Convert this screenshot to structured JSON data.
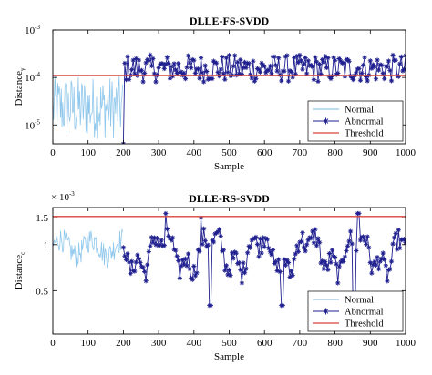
{
  "colors": {
    "normal": "#8fc7ec",
    "abnormal": "#1f1f8f",
    "threshold": "#d9453b"
  },
  "chart_data": [
    {
      "type": "line",
      "title": "DLLE-FS-SVDD",
      "xlabel": "Sample",
      "ylabel": "Distance",
      "ylabel_sub": "y",
      "yscale": "log",
      "xlim": [
        0,
        1000
      ],
      "ylim": [
        4e-06,
        0.001
      ],
      "xticks": [
        0,
        100,
        200,
        300,
        400,
        500,
        600,
        700,
        800,
        900,
        1000
      ],
      "xtick_labels": [
        "0",
        "100",
        "200",
        "300",
        "400",
        "500",
        "600",
        "700",
        "800",
        "900",
        "1000"
      ],
      "yticks": [
        1e-05,
        0.0001,
        0.001
      ],
      "ytick_labels": [
        {
          "base": "10",
          "exp": "-5"
        },
        {
          "base": "10",
          "exp": "-4"
        },
        {
          "base": "10",
          "exp": "-3"
        }
      ],
      "threshold": 0.00011,
      "legend_position": "bottom-right",
      "series": [
        {
          "name": "Normal",
          "style": "line",
          "range": [
            0,
            199
          ],
          "min": 5e-06,
          "max": 0.00011
        },
        {
          "name": "Abnormal",
          "style": "line-star",
          "range": [
            200,
            1000
          ],
          "min": 8e-05,
          "max": 0.0003,
          "dips": [
            [
              200,
              4e-06
            ]
          ]
        },
        {
          "name": "Threshold",
          "style": "flat",
          "value": 0.00011
        }
      ]
    },
    {
      "type": "line",
      "title": "DLLE-RS-SVDD",
      "xlabel": "Sample",
      "ylabel": "Distance",
      "ylabel_sub": "c",
      "yscale": "log",
      "scale_note": {
        "base": "× 10",
        "exp": "-3"
      },
      "xlim": [
        0,
        1000
      ],
      "ylim": [
        0.00026,
        0.00175
      ],
      "xticks": [
        0,
        100,
        200,
        300,
        400,
        500,
        600,
        700,
        800,
        900,
        1000
      ],
      "xtick_labels": [
        "0",
        "100",
        "200",
        "300",
        "400",
        "500",
        "600",
        "700",
        "800",
        "900",
        "1000"
      ],
      "yticks": [
        0.0005,
        0.001,
        0.0015
      ],
      "ytick_labels": [
        "0.5",
        "1",
        "1.5"
      ],
      "threshold": 0.00153,
      "legend_position": "bottom-right",
      "series": [
        {
          "name": "Normal",
          "style": "line",
          "range": [
            0,
            199
          ],
          "min": 0.0007,
          "max": 0.0013
        },
        {
          "name": "Abnormal",
          "style": "line-star",
          "range": [
            200,
            1000
          ],
          "min": 0.00045,
          "max": 0.0016,
          "peaks": [
            [
              320,
              0.0016
            ],
            [
              420,
              0.0015
            ],
            [
              865,
              0.0016
            ]
          ],
          "dips": [
            [
              445,
              0.0004
            ],
            [
              650,
              0.0004
            ],
            [
              855,
              0.00028
            ]
          ]
        },
        {
          "name": "Threshold",
          "style": "flat",
          "value": 0.00153
        }
      ]
    }
  ]
}
